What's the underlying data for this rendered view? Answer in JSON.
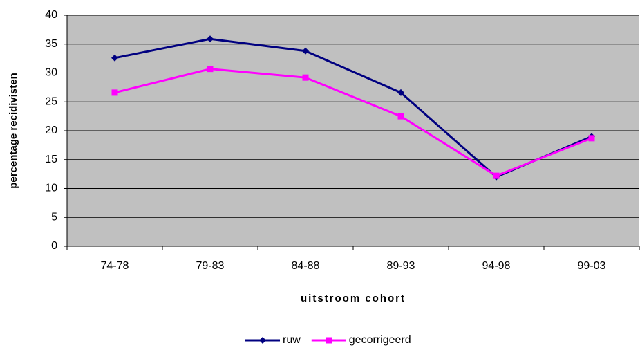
{
  "chart_data": {
    "type": "line",
    "categories": [
      "74-78",
      "79-83",
      "84-88",
      "89-93",
      "94-98",
      "99-03"
    ],
    "series": [
      {
        "name": "ruw",
        "color": "#000080",
        "marker": "diamond",
        "values": [
          32.6,
          35.9,
          33.8,
          26.6,
          12.0,
          19.0
        ]
      },
      {
        "name": "gecorrigeerd",
        "color": "#ff00ff",
        "marker": "square",
        "values": [
          26.6,
          30.7,
          29.2,
          22.5,
          12.2,
          18.7
        ]
      }
    ],
    "ylim": [
      0,
      40
    ],
    "yticks": [
      0,
      5,
      10,
      15,
      20,
      25,
      30,
      35,
      40
    ],
    "grid": true,
    "x_label": "uitstroom cohort",
    "y_label": "percentage recidivisten",
    "legend": "bottom"
  }
}
